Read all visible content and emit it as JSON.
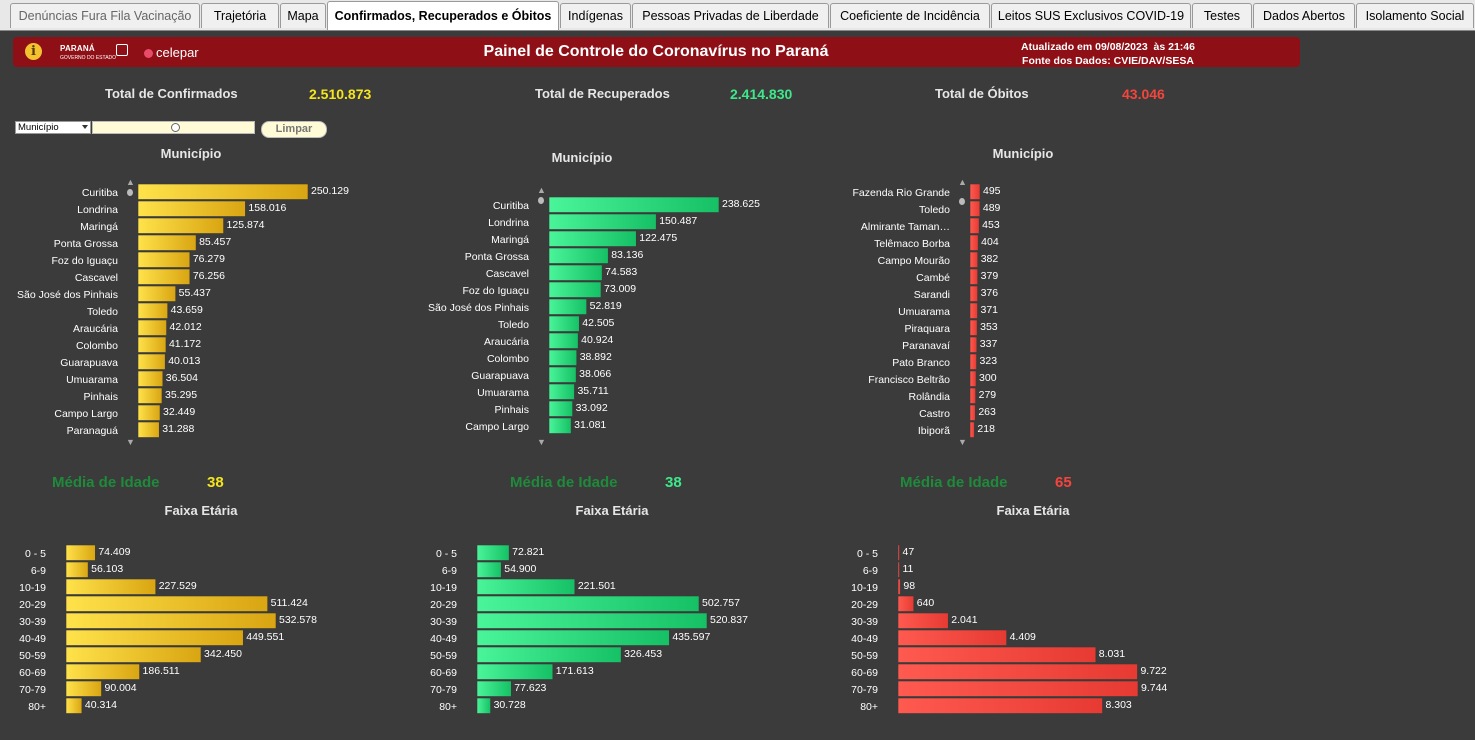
{
  "tabs": [
    {
      "label": "Denúncias Fura Fila Vacinação"
    },
    {
      "label": "Trajetória"
    },
    {
      "label": "Mapa"
    },
    {
      "label": "Confirmados, Recuperados e Óbitos"
    },
    {
      "label": "Indígenas"
    },
    {
      "label": "Pessoas Privadas de Liberdade"
    },
    {
      "label": "Coeficiente de Incidência"
    },
    {
      "label": "Leitos SUS Exclusivos COVID-19"
    },
    {
      "label": "Testes"
    },
    {
      "label": "Dados Abertos"
    },
    {
      "label": "Isolamento Social"
    }
  ],
  "header": {
    "logo_text": "PARANÁ",
    "logo_subtext": "GOVERNO DO ESTADO",
    "partner_logo": "celepar",
    "title": "Painel de Controle do Coronavírus no Paraná",
    "updated": "Atualizado em 09/08/2023  às 21:46",
    "source": "Fonte dos Dados: CVIE/DAV/SESA"
  },
  "totals": {
    "confirmed_label": "Total de Confirmados",
    "confirmed_value": "2.510.873",
    "recovered_label": "Total de Recuperados",
    "recovered_value": "2.414.830",
    "deaths_label": "Total de Óbitos",
    "deaths_value": "43.046"
  },
  "filter": {
    "select_value": "Município",
    "clear_label": "Limpar"
  },
  "colors": {
    "confirmed": "#f5c518",
    "recovered": "#2ee27a",
    "deaths": "#f4453d",
    "average_label": "#1e8a3a"
  },
  "averages": {
    "label": "Média de Idade",
    "confirmed": "38",
    "recovered": "38",
    "deaths": "65"
  },
  "chart_data": [
    {
      "type": "bar",
      "orientation": "horizontal",
      "title": "Município",
      "color_key": "confirmed",
      "categories": [
        "Curitiba",
        "Londrina",
        "Maringá",
        "Ponta Grossa",
        "Foz do Iguaçu",
        "Cascavel",
        "São José dos Pinhais",
        "Toledo",
        "Araucária",
        "Colombo",
        "Guarapuava",
        "Umuarama",
        "Pinhais",
        "Campo Largo",
        "Paranaguá"
      ],
      "values": [
        250129,
        158016,
        125874,
        85457,
        76279,
        76256,
        55437,
        43659,
        42012,
        41172,
        40013,
        36504,
        35295,
        32449,
        31288
      ],
      "labels": [
        "250.129",
        "158.016",
        "125.874",
        "85.457",
        "76.279",
        "76.256",
        "55.437",
        "43.659",
        "42.012",
        "41.172",
        "40.013",
        "36.504",
        "35.295",
        "32.449",
        "31.288"
      ]
    },
    {
      "type": "bar",
      "orientation": "horizontal",
      "title": "Município",
      "color_key": "recovered",
      "categories": [
        "Curitiba",
        "Londrina",
        "Maringá",
        "Ponta Grossa",
        "Cascavel",
        "Foz do Iguaçu",
        "São José dos Pinhais",
        "Toledo",
        "Araucária",
        "Colombo",
        "Guarapuava",
        "Umuarama",
        "Pinhais",
        "Campo Largo"
      ],
      "values": [
        238625,
        150487,
        122475,
        83136,
        74583,
        73009,
        52819,
        42505,
        40924,
        38892,
        38066,
        35711,
        33092,
        31081
      ],
      "labels": [
        "238.625",
        "150.487",
        "122.475",
        "83.136",
        "74.583",
        "73.009",
        "52.819",
        "42.505",
        "40.924",
        "38.892",
        "38.066",
        "35.711",
        "33.092",
        "31.081"
      ]
    },
    {
      "type": "bar",
      "orientation": "horizontal",
      "title": "Município",
      "color_key": "deaths",
      "categories": [
        "Fazenda Rio Grande",
        "Toledo",
        "Almirante Taman…",
        "Telêmaco Borba",
        "Campo Mourão",
        "Cambé",
        "Sarandi",
        "Umuarama",
        "Piraquara",
        "Paranavaí",
        "Pato Branco",
        "Francisco Beltrão",
        "Rolândia",
        "Castro",
        "Ibiporã"
      ],
      "values": [
        495,
        489,
        453,
        404,
        382,
        379,
        376,
        371,
        353,
        337,
        323,
        300,
        279,
        263,
        218
      ],
      "labels": [
        "495",
        "489",
        "453",
        "404",
        "382",
        "379",
        "376",
        "371",
        "353",
        "337",
        "323",
        "300",
        "279",
        "263",
        "218"
      ]
    },
    {
      "type": "bar",
      "orientation": "horizontal",
      "title": "Faixa Etária",
      "color_key": "confirmed",
      "categories": [
        "0 - 5",
        "6-9",
        "10-19",
        "20-29",
        "30-39",
        "40-49",
        "50-59",
        "60-69",
        "70-79",
        "80+"
      ],
      "values": [
        74409,
        56103,
        227529,
        511424,
        532578,
        449551,
        342450,
        186511,
        90004,
        40314
      ],
      "labels": [
        "74.409",
        "56.103",
        "227.529",
        "511.424",
        "532.578",
        "449.551",
        "342.450",
        "186.511",
        "90.004",
        "40.314"
      ]
    },
    {
      "type": "bar",
      "orientation": "horizontal",
      "title": "Faixa Etária",
      "color_key": "recovered",
      "categories": [
        "0 - 5",
        "6-9",
        "10-19",
        "20-29",
        "30-39",
        "40-49",
        "50-59",
        "60-69",
        "70-79",
        "80+"
      ],
      "values": [
        72821,
        54900,
        221501,
        502757,
        520837,
        435597,
        326453,
        171613,
        77623,
        30728
      ],
      "labels": [
        "72.821",
        "54.900",
        "221.501",
        "502.757",
        "520.837",
        "435.597",
        "326.453",
        "171.613",
        "77.623",
        "30.728"
      ]
    },
    {
      "type": "bar",
      "orientation": "horizontal",
      "title": "Faixa Etária",
      "color_key": "deaths",
      "categories": [
        "0 - 5",
        "6-9",
        "10-19",
        "20-29",
        "30-39",
        "40-49",
        "50-59",
        "60-69",
        "70-79",
        "80+"
      ],
      "values": [
        47,
        11,
        98,
        640,
        2041,
        4409,
        8031,
        9722,
        9744,
        8303
      ],
      "labels": [
        "47",
        "11",
        "98",
        "640",
        "2.041",
        "4.409",
        "8.031",
        "9.722",
        "9.744",
        "8.303"
      ]
    }
  ]
}
